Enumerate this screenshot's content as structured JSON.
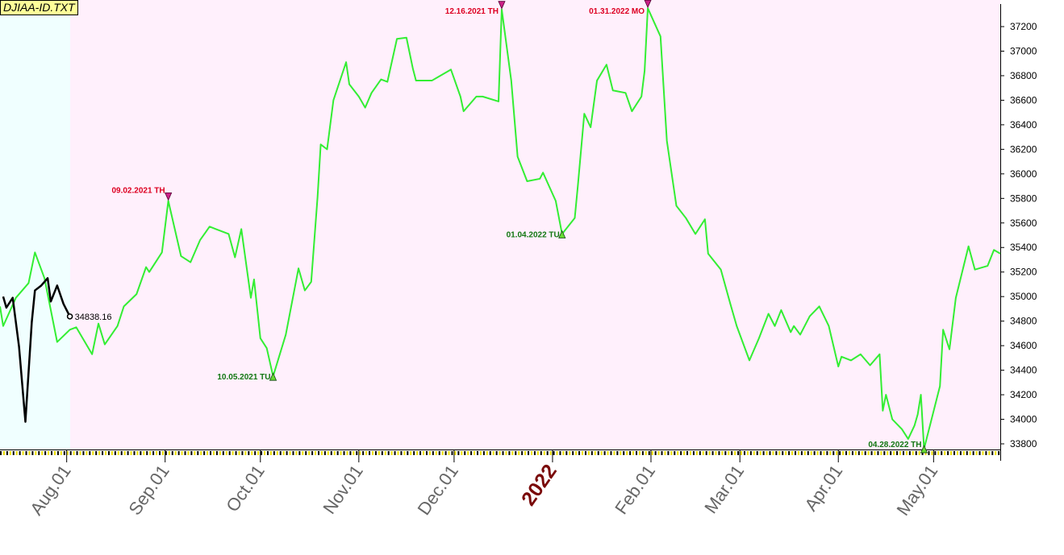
{
  "chart_data": {
    "type": "line",
    "title": "DJIAA-ID.TXT",
    "xlim": [
      "2021-07-11",
      "2022-05-22"
    ],
    "xticks": [
      {
        "value": "2021-08-01",
        "label": "Aug.01"
      },
      {
        "value": "2021-09-01",
        "label": "Sep.01"
      },
      {
        "value": "2021-10-01",
        "label": "Oct.01"
      },
      {
        "value": "2021-11-01",
        "label": "Nov.01"
      },
      {
        "value": "2021-12-01",
        "label": "Dec.01"
      },
      {
        "value": "2022-01-01",
        "label": "2022"
      },
      {
        "value": "2022-02-01",
        "label": "Feb.01"
      },
      {
        "value": "2022-03-01",
        "label": "Mar.01"
      },
      {
        "value": "2022-04-01",
        "label": "Apr.01"
      },
      {
        "value": "2022-05-01",
        "label": "May.01"
      }
    ],
    "ylim": [
      33754,
      37384
    ],
    "yticks": [
      33800,
      34000,
      34200,
      34400,
      34600,
      34800,
      35000,
      35200,
      35400,
      35600,
      35800,
      36000,
      36200,
      36400,
      36600,
      36800,
      37000,
      37200
    ],
    "series": [
      {
        "color": "#33ee33",
        "x": [
          "2021-07-11",
          "2021-07-12",
          "2021-07-16",
          "2021-07-20",
          "2021-07-22",
          "2021-07-25",
          "2021-07-27",
          "2021-07-29",
          "2021-08-02",
          "2021-08-04",
          "2021-08-09",
          "2021-08-11",
          "2021-08-13",
          "2021-08-17",
          "2021-08-19",
          "2021-08-23",
          "2021-08-26",
          "2021-08-27",
          "2021-08-31",
          "2021-09-02",
          "2021-09-06",
          "2021-09-09",
          "2021-09-12",
          "2021-09-15",
          "2021-09-17",
          "2021-09-21",
          "2021-09-23",
          "2021-09-25",
          "2021-09-28",
          "2021-09-29",
          "2021-10-01",
          "2021-10-03",
          "2021-10-05",
          "2021-10-09",
          "2021-10-13",
          "2021-10-15",
          "2021-10-17",
          "2021-10-19",
          "2021-10-20",
          "2021-10-22",
          "2021-10-24",
          "2021-10-28",
          "2021-10-29",
          "2021-11-01",
          "2021-11-03",
          "2021-11-05",
          "2021-11-08",
          "2021-11-10",
          "2021-11-13",
          "2021-11-16",
          "2021-11-18",
          "2021-11-19",
          "2021-11-24",
          "2021-11-26",
          "2021-11-30",
          "2021-12-03",
          "2021-12-04",
          "2021-12-08",
          "2021-12-10",
          "2021-12-15",
          "2021-12-16",
          "2021-12-19",
          "2021-12-21",
          "2021-12-24",
          "2021-12-28",
          "2021-12-29",
          "2022-01-02",
          "2022-01-04",
          "2022-01-08",
          "2022-01-09",
          "2022-01-11",
          "2022-01-13",
          "2022-01-15",
          "2022-01-18",
          "2022-01-20",
          "2022-01-24",
          "2022-01-26",
          "2022-01-29",
          "2022-01-30",
          "2022-01-31",
          "2022-02-04",
          "2022-02-06",
          "2022-02-09",
          "2022-02-12",
          "2022-02-15",
          "2022-02-18",
          "2022-02-19",
          "2022-02-23",
          "2022-02-26",
          "2022-02-28",
          "2022-03-04",
          "2022-03-07",
          "2022-03-10",
          "2022-03-12",
          "2022-03-14",
          "2022-03-17",
          "2022-03-18",
          "2022-03-20",
          "2022-03-23",
          "2022-03-26",
          "2022-03-29",
          "2022-04-01",
          "2022-04-02",
          "2022-04-05",
          "2022-04-08",
          "2022-04-11",
          "2022-04-14",
          "2022-04-15",
          "2022-04-16",
          "2022-04-18",
          "2022-04-21",
          "2022-04-23",
          "2022-04-25",
          "2022-04-26",
          "2022-04-27",
          "2022-04-28",
          "2022-05-03",
          "2022-05-04",
          "2022-05-06",
          "2022-05-08",
          "2022-05-12",
          "2022-05-14",
          "2022-05-18",
          "2022-05-20",
          "2022-05-22"
        ],
        "values": [
          34920,
          34760,
          34990,
          35110,
          35360,
          35150,
          34890,
          34630,
          34730,
          34750,
          34530,
          34780,
          34610,
          34760,
          34920,
          35020,
          35240,
          35200,
          35360,
          35780,
          35330,
          35280,
          35460,
          35570,
          35550,
          35510,
          35320,
          35550,
          34990,
          35140,
          34660,
          34580,
          34350,
          34690,
          35230,
          35050,
          35120,
          35810,
          36240,
          36200,
          36600,
          36910,
          36730,
          36630,
          36540,
          36660,
          36770,
          36750,
          37100,
          37110,
          36860,
          36760,
          36760,
          36790,
          36850,
          36630,
          36510,
          36630,
          36630,
          36590,
          37340,
          36760,
          36140,
          35940,
          35960,
          36010,
          35780,
          35510,
          35640,
          35910,
          36490,
          36380,
          36760,
          36890,
          36680,
          36660,
          36510,
          36630,
          36840,
          37350,
          37120,
          36270,
          35740,
          35640,
          35510,
          35630,
          35350,
          35220,
          34940,
          34760,
          34480,
          34660,
          34860,
          34760,
          34890,
          34710,
          34760,
          34690,
          34840,
          34920,
          34760,
          34430,
          34510,
          34480,
          34530,
          34440,
          34530,
          34070,
          34200,
          34000,
          33920,
          33840,
          33950,
          34040,
          34200,
          33760,
          34270,
          34730,
          34570,
          34990,
          35410,
          35220,
          35250,
          35380,
          35350
        ]
      },
      {
        "color": "#000000",
        "x": [
          "2021-07-12",
          "2021-07-13",
          "2021-07-15",
          "2021-07-17",
          "2021-07-19",
          "2021-07-21",
          "2021-07-22",
          "2021-07-24",
          "2021-07-26",
          "2021-07-27",
          "2021-07-29",
          "2021-07-31",
          "2021-08-02"
        ],
        "values": [
          35000,
          34910,
          34990,
          34590,
          33980,
          34790,
          35050,
          35090,
          35150,
          34960,
          35090,
          34940,
          34838.16
        ]
      }
    ],
    "annotations": [
      {
        "label": "09.02.2021 TH",
        "x": "2021-09-02",
        "y": 35780,
        "color": "#dd0022",
        "marker": "down"
      },
      {
        "label": "10.05.2021 TU",
        "x": "2021-10-05",
        "y": 34350,
        "color": "#117711",
        "marker": "up"
      },
      {
        "label": "12.16.2021 TH",
        "x": "2021-12-16",
        "y": 37340,
        "color": "#dd0022",
        "marker": "down"
      },
      {
        "label": "01.04.2022 TU",
        "x": "2022-01-04",
        "y": 35510,
        "color": "#117711",
        "marker": "up"
      },
      {
        "label": "01.31.2022 MO",
        "x": "2022-01-31",
        "y": 37350,
        "color": "#dd0022",
        "marker": "down"
      },
      {
        "label": "04.28.2022 TH",
        "x": "2022-04-28",
        "y": 33760,
        "color": "#117711",
        "marker": "up"
      }
    ]
  }
}
